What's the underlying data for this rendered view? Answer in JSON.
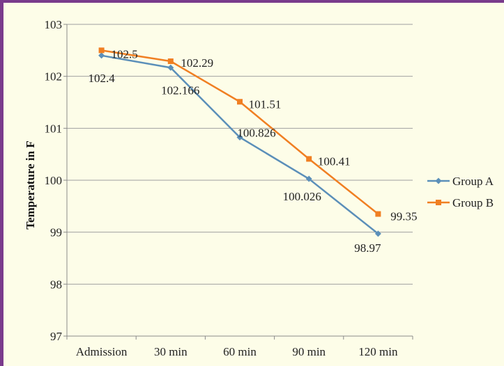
{
  "chart_data": {
    "type": "line",
    "title": "",
    "xlabel": "",
    "ylabel": "Temperature in F",
    "categories": [
      "Admission",
      "30 min",
      "60 min",
      "90 min",
      "120 min"
    ],
    "ylim": [
      97,
      103
    ],
    "yticks": [
      97,
      98,
      99,
      100,
      101,
      102,
      103
    ],
    "grid": true,
    "legend": "right",
    "series": [
      {
        "name": "Group A",
        "values": [
          102.4,
          102.166,
          100.826,
          100.026,
          98.97
        ],
        "labels": [
          "102.4",
          "102.166",
          "100.826",
          "100.026",
          "98.97"
        ],
        "color": "#5b8fb9",
        "marker": "diamond"
      },
      {
        "name": "Group B",
        "values": [
          102.5,
          102.29,
          101.51,
          100.41,
          99.35
        ],
        "labels": [
          "102.5",
          "102.29",
          "101.51",
          "100.41",
          "99.35"
        ],
        "color": "#f07f22",
        "marker": "square"
      }
    ]
  }
}
